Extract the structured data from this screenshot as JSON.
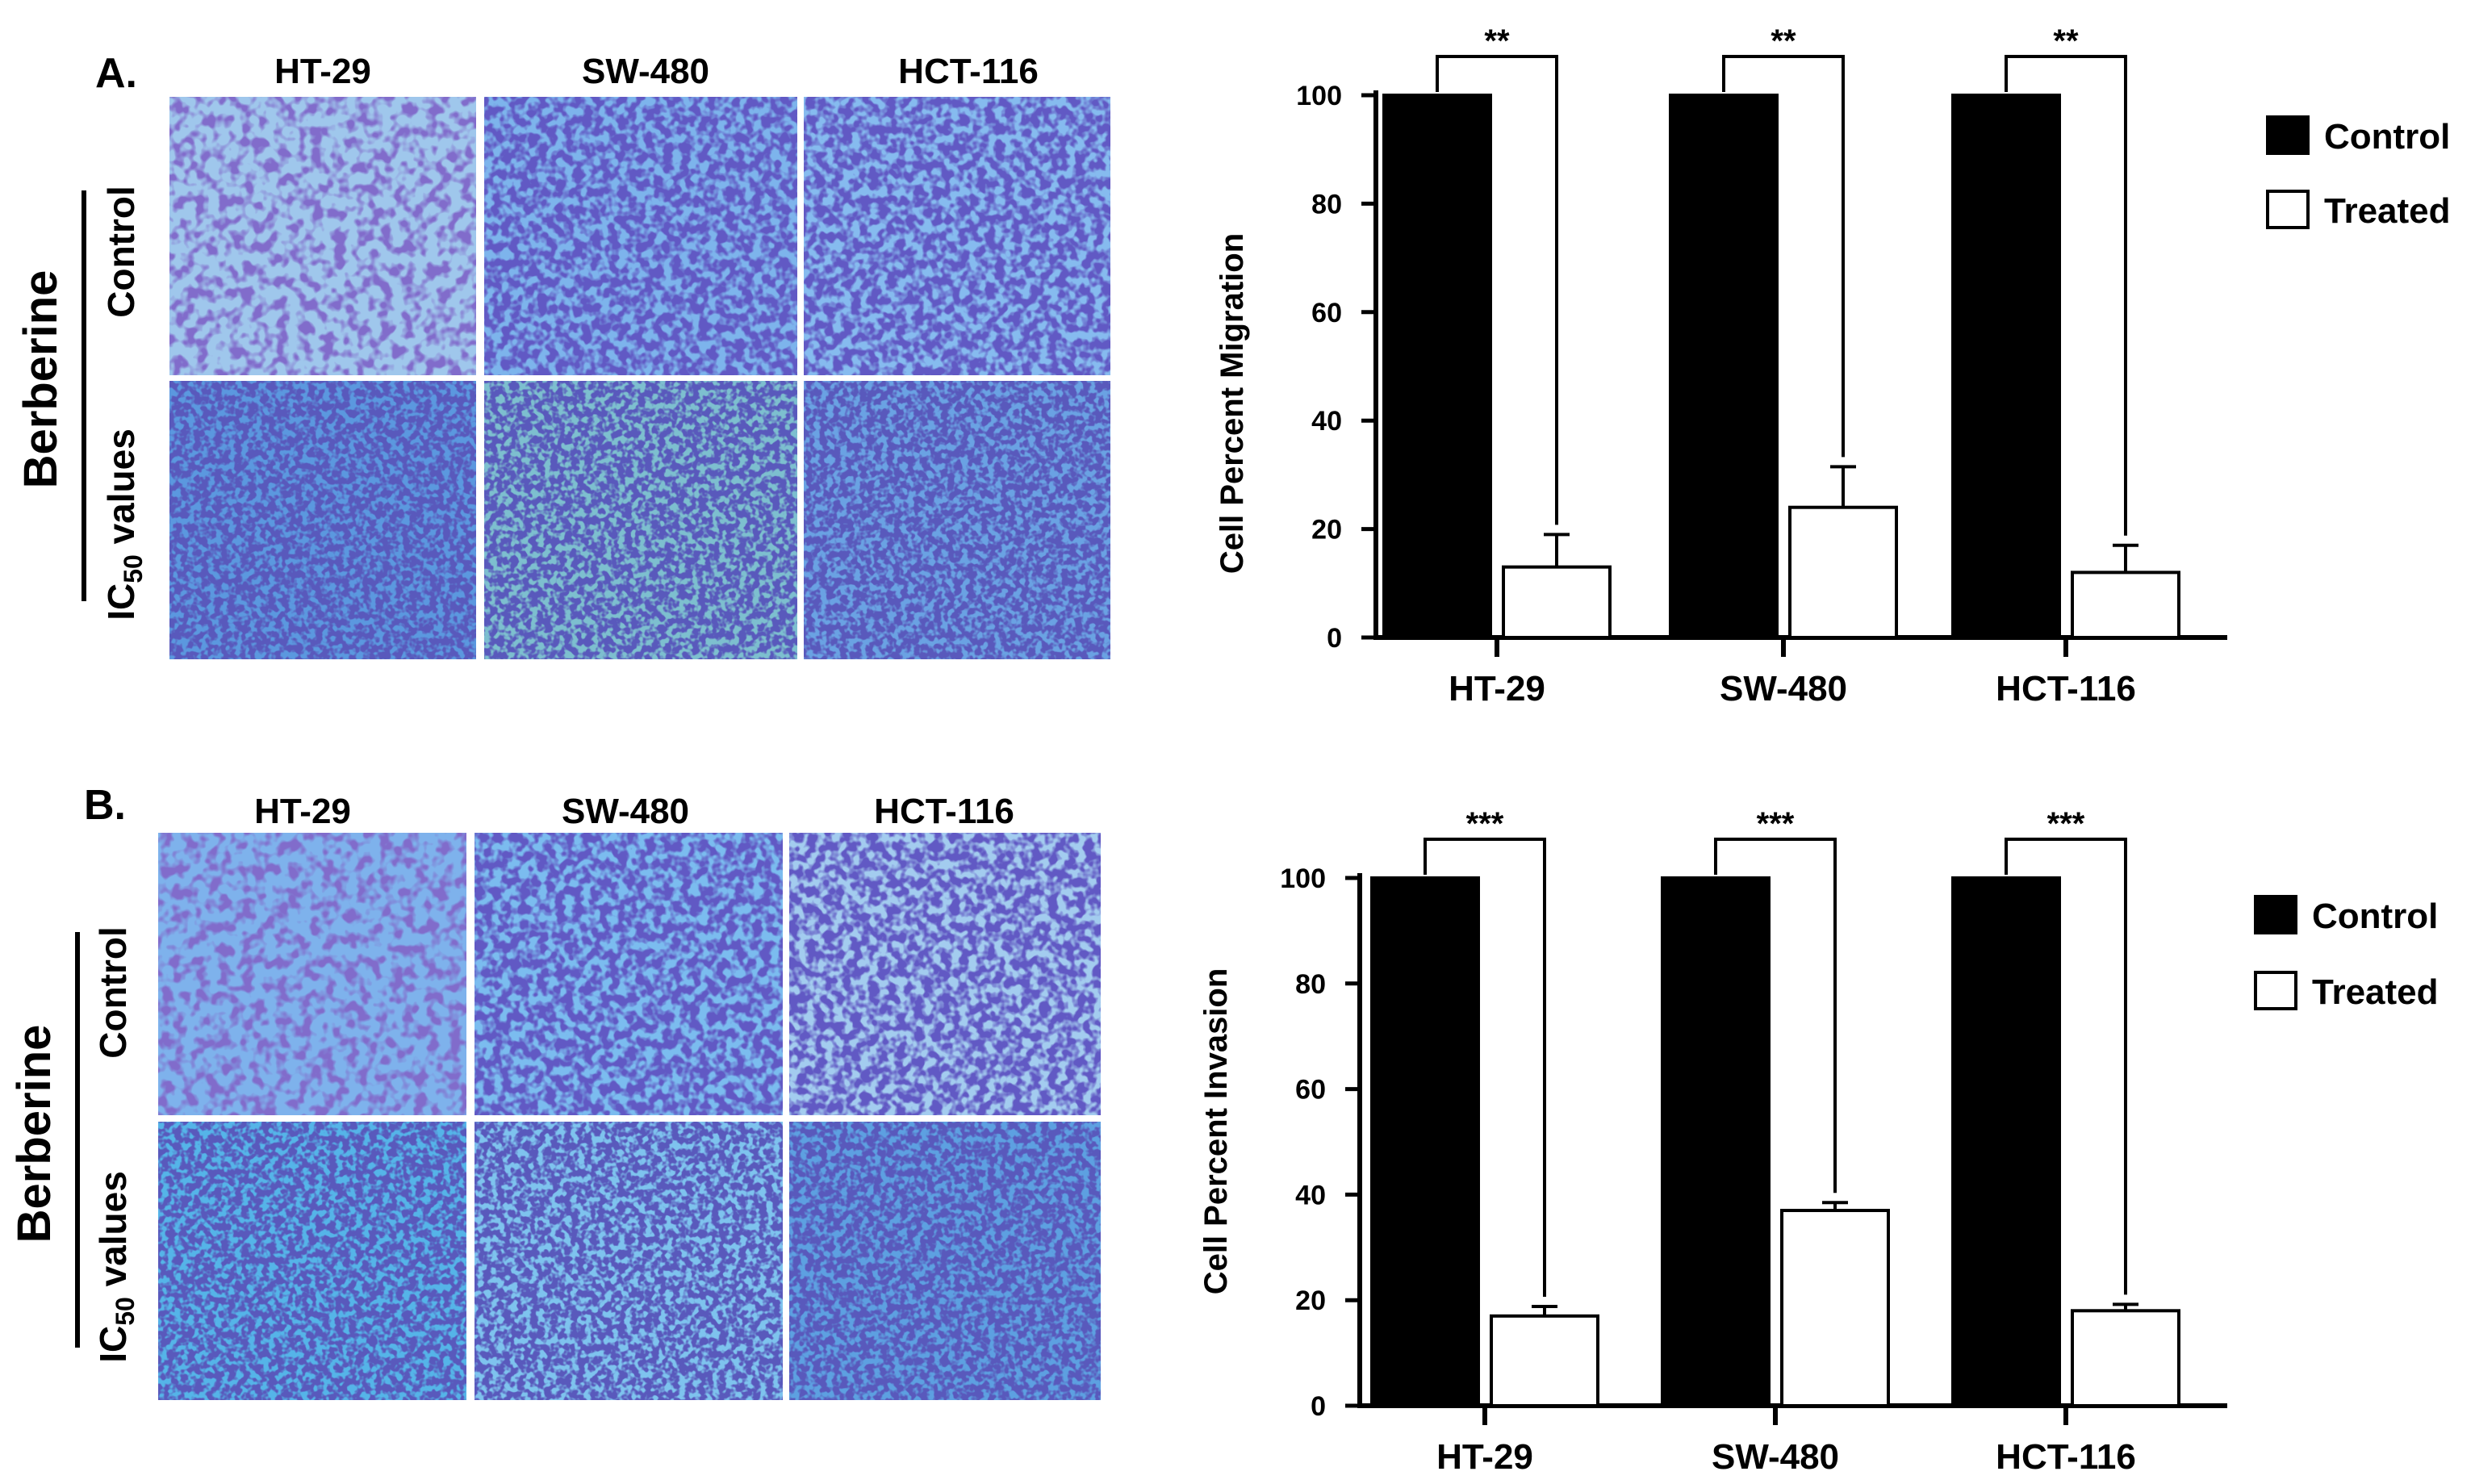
{
  "panels": [
    {
      "letter": "A.",
      "cell_lines": [
        "HT-29",
        "SW-480",
        "HCT-116"
      ],
      "group_label": "Berberine",
      "row_labels": {
        "control": "Control",
        "ic50_main": "IC",
        "ic50_sub": "50",
        "ic50_rest": " values"
      }
    },
    {
      "letter": "B.",
      "cell_lines": [
        "HT-29",
        "SW-480",
        "HCT-116"
      ],
      "group_label": "Berberine",
      "row_labels": {
        "control": "Control",
        "ic50_main": "IC",
        "ic50_sub": "50",
        "ic50_rest": " values"
      }
    }
  ],
  "chart_data": [
    {
      "type": "bar",
      "categories": [
        "HT-29",
        "SW-480",
        "HCT-116"
      ],
      "series": [
        {
          "name": "Control",
          "values": [
            100,
            100,
            100
          ],
          "color": "#000000"
        },
        {
          "name": "Treated",
          "values": [
            13,
            24,
            12
          ],
          "errors": [
            6,
            7.5,
            5
          ],
          "color": "#ffffff"
        }
      ],
      "significance": [
        "**",
        "**",
        "**"
      ],
      "ylabel": "Cell Percent Migration",
      "ylim": [
        0,
        100
      ],
      "yticks": [
        "0",
        "20",
        "40",
        "60",
        "80",
        "100"
      ],
      "legend": "right"
    },
    {
      "type": "bar",
      "categories": [
        "HT-29",
        "SW-480",
        "HCT-116"
      ],
      "series": [
        {
          "name": "Control",
          "values": [
            100,
            100,
            100
          ],
          "color": "#000000"
        },
        {
          "name": "Treated",
          "values": [
            17,
            37,
            18
          ],
          "errors": [
            1.8,
            1.5,
            1.2
          ],
          "color": "#ffffff"
        }
      ],
      "significance": [
        "***",
        "***",
        "***"
      ],
      "ylabel": "Cell Percent Invasion",
      "ylim": [
        0,
        100
      ],
      "yticks": [
        "0",
        "20",
        "40",
        "60",
        "80",
        "100"
      ],
      "legend": "right"
    }
  ]
}
